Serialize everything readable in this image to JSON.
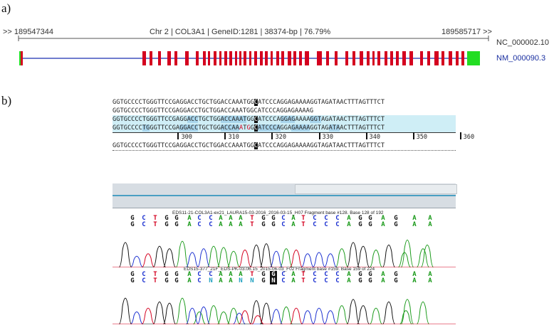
{
  "panel_a_label": "a)",
  "panel_b_label": "b)",
  "gene_track": {
    "left_coord": ">> 189547344",
    "right_coord": "189585717 >>",
    "header": "Chr 2 | COL3A1 | GeneID:1281 | 38374-bp | 76.79%",
    "accession_top": "NC_000002.10",
    "accession_bottom": "NM_000090.3",
    "colors": {
      "exon": "#d4001f",
      "intron": "#1b2fb0",
      "utr": "#22dd22",
      "accession_link": "#1a2fa0"
    }
  },
  "alignment": {
    "lines": [
      "GGTGCCCCTGGGTTCCGAGGACCTGCTGGACCAAATGGCATCCCAGGAGAAAAGGTAGATAACTTTAGTTTCT",
      "GGTGCCCCTGGGTTCCGAGGACCTGCTGGACCAAATGGCATCCCAGGAGAAAAG",
      "GGTGCCCCTGGGTTCCGAGGACCTGCTGGACCAAATGGCATCCCAGGAGAAAAGGTAGATAACTTTAGTTTCT",
      "GGTGCCCCTGGGTTCCGAGGACCTGCTGGACCAAATGGCATCCCAGGAGAAAAGGTAGATAACTTTAGTTTCT"
    ],
    "ruler_labels": [
      "300",
      "310",
      "320",
      "330",
      "340",
      "350",
      "360"
    ],
    "consensus": "GGTGCCCCTGGGTTCCGAGGACCTGCTGGACCAAATGGCATCCCAGGAGAAAAGGTAGATAACTTTAGTTTCT"
  },
  "chromatogram": {
    "trace1_title": "EDS11-21-COL3A1-ex21_LAURA15-03-2016_2016-03-15_H07 Fragment base #128. Base 128 of 192",
    "trace2_title": "EDS15-377_21F_EDS-PK-03.06.15_2015-06-03_F02 Fragment base #159. Base 159 of 224",
    "trace1_called": [
      "G",
      "C",
      "T",
      "G",
      "G",
      "A",
      "C",
      "C",
      "A",
      "A",
      "A",
      "T",
      "G",
      "G",
      "C",
      "A",
      "T",
      "C",
      "C",
      "C",
      "A",
      "G",
      "G",
      "A",
      "G",
      "A",
      "A"
    ],
    "trace1_quality": [
      "G",
      "C",
      "T",
      "G",
      "G",
      "A",
      "C",
      "C",
      "A",
      "A",
      "A",
      "T",
      "G",
      "G",
      "C",
      "A",
      "T",
      "C",
      "C",
      "C",
      "A",
      "G",
      "G",
      "A",
      "G",
      "A",
      "A"
    ],
    "trace2_called": [
      "G",
      "C",
      "T",
      "G",
      "G",
      "A",
      "C",
      "C",
      "A",
      "A",
      "A",
      "T",
      "G",
      "G",
      "C",
      "A",
      "T",
      "C",
      "C",
      "C",
      "A",
      "G",
      "G",
      "A",
      "G",
      "A",
      "A"
    ],
    "trace2_quality": [
      "G",
      "C",
      "T",
      "G",
      "G",
      "A",
      "C",
      "N",
      "A",
      "A",
      "N",
      "N",
      "G",
      "N",
      "C",
      "A",
      "T",
      "C",
      "C",
      "C",
      "A",
      "G",
      "G",
      "A",
      "G",
      "A",
      "A"
    ],
    "base_colors": {
      "A": "#1a9a1a",
      "C": "#1a2fd0",
      "G": "#111111",
      "T": "#d4001f",
      "N": "#20a0c0"
    }
  }
}
